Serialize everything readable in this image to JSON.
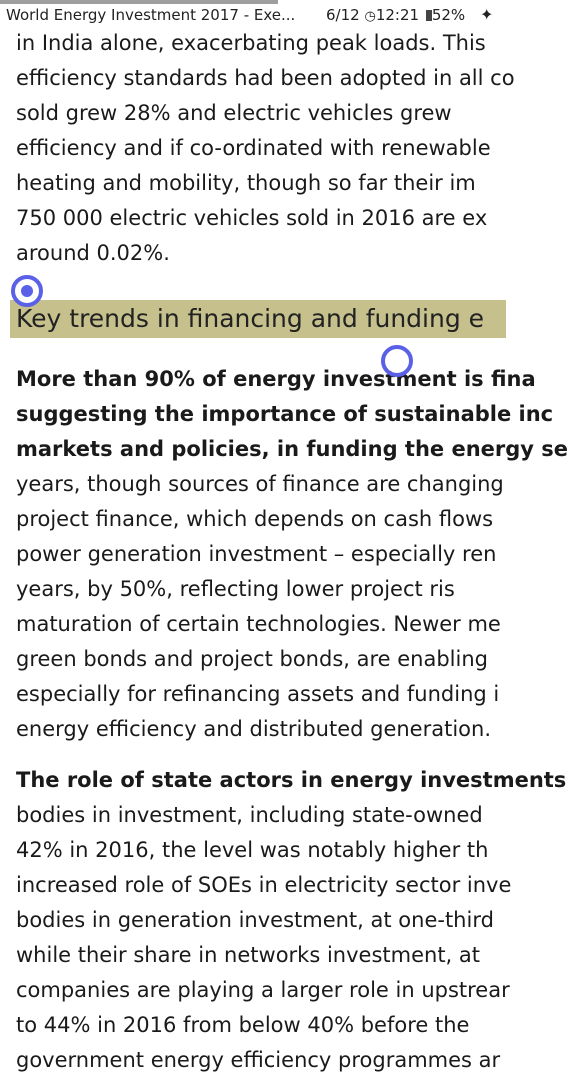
{
  "status_bar": {
    "doc_title": "World Energy Investment 2017 - Exe...",
    "page_indicator": "6/12",
    "time": "12:21",
    "battery": "52%",
    "reading_progress": 0.556,
    "icons": [
      "clock-icon",
      "battery-icon",
      "pin-icon"
    ]
  },
  "section1_lines": [
    "in India alone, exacerbating peak loads. This",
    "efficiency standards had been adopted in all co",
    "sold grew 28% and electric vehicles grew",
    "efficiency and if co-ordinated with renewable",
    "heating and mobility, though so far their im",
    "750 000 electric vehicles sold in 2016 are ex",
    "around 0.02%."
  ],
  "heading": "Key trends in financing and funding e",
  "section2_bold_lines": [
    "More than 90% of energy investment is fina",
    "suggesting the importance of sustainable inc",
    "markets and policies, in funding the energy se"
  ],
  "section2_lines": [
    "years, though sources of finance are changing",
    "project finance, which depends on cash flows",
    "power generation investment – especially ren",
    "years, by 50%, reflecting lower project ris",
    "maturation of certain technologies. Newer me",
    "green bonds and project bonds, are enabling",
    "especially for refinancing assets and funding i",
    "energy efficiency and distributed generation."
  ],
  "section3_bold_line": "The role of state actors in energy investments",
  "section3_lines": [
    "bodies in investment, including state-owned",
    "42% in 2016, the level was notably higher th",
    "increased role of SOEs in electricity sector inve",
    "bodies in generation investment, at one-third",
    "while their share in networks investment, at",
    "companies are playing a larger role in upstrear",
    "to 44% in 2016 from below 40% before the",
    "government energy efficiency programmes ar"
  ]
}
